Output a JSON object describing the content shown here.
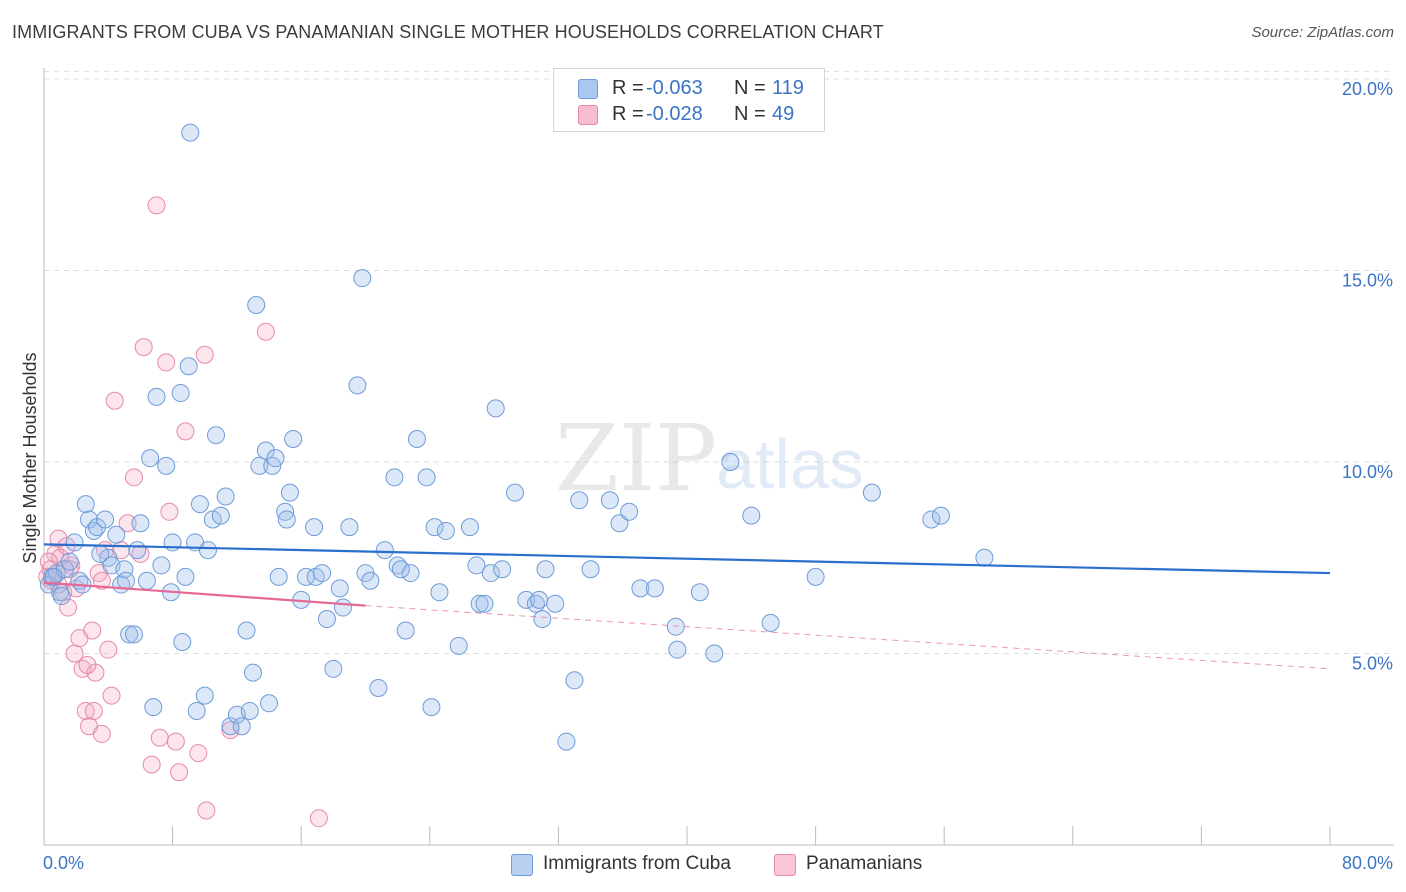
{
  "title": "IMMIGRANTS FROM CUBA VS PANAMANIAN SINGLE MOTHER HOUSEHOLDS CORRELATION CHART",
  "source": "Source: ZipAtlas.com",
  "watermark": {
    "zip": "ZIP",
    "atlas": "atlas"
  },
  "legend": {
    "rows": [
      {
        "r_label": "R =",
        "r_value": "-0.063",
        "n_label": "N =",
        "n_value": "119",
        "color": "#a9c8ef",
        "border": "#6f9bd8"
      },
      {
        "r_label": "R =",
        "r_value": "-0.028",
        "n_label": "N =",
        "n_value": " 49",
        "color": "#f7bcd0",
        "border": "#e68aa9"
      }
    ]
  },
  "bottom_legend": [
    {
      "label": "Immigrants from Cuba",
      "color": "#b8d1f1",
      "border": "#6f9bd8"
    },
    {
      "label": "Panamanians",
      "color": "#f9c6d6",
      "border": "#e68aa9"
    }
  ],
  "colors": {
    "blue_fill": "rgba(155,190,235,0.35)",
    "blue_stroke": "#6f9bd8",
    "blue_line": "#2a6fcb",
    "pink_fill": "rgba(245,170,195,0.30)",
    "pink_stroke": "#e68aa9",
    "pink_line": "#e46a94",
    "grid": "#dddddd",
    "axis": "#bbbbbb",
    "tick_text": "#3b74c6"
  },
  "chart_data": {
    "type": "scatter",
    "title": "IMMIGRANTS FROM CUBA VS PANAMANIAN SINGLE MOTHER HOUSEHOLDS CORRELATION CHART",
    "xlabel": "",
    "ylabel": "Single Mother Households",
    "xlim": [
      0,
      80
    ],
    "ylim": [
      0,
      20.5
    ],
    "x_tick_labels": [
      {
        "value": 0,
        "label": "0.0%"
      },
      {
        "value": 80,
        "label": "80.0%"
      }
    ],
    "y_tick_labels": [
      {
        "value": 5,
        "label": "5.0%"
      },
      {
        "value": 10,
        "label": "10.0%"
      },
      {
        "value": 15,
        "label": "15.0%"
      },
      {
        "value": 20,
        "label": "20.0%"
      }
    ],
    "series": [
      {
        "name": "Immigrants from Cuba",
        "r": -0.063,
        "n": 119,
        "trend": {
          "x": [
            0,
            80
          ],
          "y": [
            7.85,
            7.1
          ],
          "style": "solid"
        },
        "points": [
          [
            0.3,
            6.8
          ],
          [
            0.5,
            7.0
          ],
          [
            0.8,
            7.1
          ],
          [
            1.0,
            6.6
          ],
          [
            1.3,
            7.2
          ],
          [
            1.6,
            7.4
          ],
          [
            1.9,
            7.9
          ],
          [
            2.2,
            6.9
          ],
          [
            2.4,
            6.8
          ],
          [
            2.6,
            8.9
          ],
          [
            2.8,
            8.5
          ],
          [
            3.1,
            8.2
          ],
          [
            3.3,
            8.3
          ],
          [
            3.8,
            8.5
          ],
          [
            4.0,
            7.5
          ],
          [
            4.2,
            7.3
          ],
          [
            4.5,
            8.1
          ],
          [
            4.8,
            6.8
          ],
          [
            5.0,
            7.2
          ],
          [
            5.3,
            5.5
          ],
          [
            5.6,
            5.5
          ],
          [
            5.8,
            7.7
          ],
          [
            6.0,
            8.4
          ],
          [
            6.4,
            6.9
          ],
          [
            6.6,
            10.1
          ],
          [
            6.8,
            3.6
          ],
          [
            7.0,
            11.7
          ],
          [
            7.3,
            7.3
          ],
          [
            7.6,
            9.9
          ],
          [
            7.9,
            6.6
          ],
          [
            8.0,
            7.9
          ],
          [
            8.5,
            11.8
          ],
          [
            9.1,
            18.6
          ],
          [
            8.6,
            5.3
          ],
          [
            8.8,
            7.0
          ],
          [
            9.0,
            12.5
          ],
          [
            9.5,
            3.5
          ],
          [
            9.7,
            8.9
          ],
          [
            10.0,
            3.9
          ],
          [
            10.2,
            7.7
          ],
          [
            10.5,
            8.5
          ],
          [
            10.7,
            10.7
          ],
          [
            11.0,
            8.6
          ],
          [
            11.3,
            9.1
          ],
          [
            11.6,
            3.1
          ],
          [
            12.0,
            3.4
          ],
          [
            12.3,
            3.1
          ],
          [
            12.6,
            5.6
          ],
          [
            13.0,
            4.5
          ],
          [
            13.2,
            14.1
          ],
          [
            13.4,
            9.9
          ],
          [
            13.8,
            10.3
          ],
          [
            14.0,
            3.7
          ],
          [
            14.2,
            9.9
          ],
          [
            14.4,
            10.1
          ],
          [
            14.6,
            7.0
          ],
          [
            15.0,
            8.7
          ],
          [
            15.1,
            8.5
          ],
          [
            15.3,
            9.2
          ],
          [
            15.5,
            10.6
          ],
          [
            16.0,
            6.4
          ],
          [
            16.3,
            7.0
          ],
          [
            16.9,
            7.0
          ],
          [
            17.3,
            7.1
          ],
          [
            17.6,
            5.9
          ],
          [
            18.0,
            4.6
          ],
          [
            18.4,
            6.7
          ],
          [
            18.6,
            6.2
          ],
          [
            19.0,
            8.3
          ],
          [
            19.5,
            12.0
          ],
          [
            19.8,
            14.8
          ],
          [
            20.0,
            7.1
          ],
          [
            20.3,
            6.9
          ],
          [
            20.8,
            4.1
          ],
          [
            21.2,
            7.7
          ],
          [
            21.8,
            9.6
          ],
          [
            22.0,
            7.3
          ],
          [
            22.5,
            5.6
          ],
          [
            22.8,
            7.1
          ],
          [
            23.2,
            10.6
          ],
          [
            23.8,
            9.6
          ],
          [
            24.1,
            3.6
          ],
          [
            24.3,
            8.3
          ],
          [
            24.6,
            6.6
          ],
          [
            25.0,
            8.2
          ],
          [
            25.8,
            5.2
          ],
          [
            26.5,
            8.3
          ],
          [
            27.1,
            6.3
          ],
          [
            27.4,
            6.3
          ],
          [
            27.8,
            7.1
          ],
          [
            28.1,
            11.4
          ],
          [
            28.5,
            7.2
          ],
          [
            29.3,
            9.2
          ],
          [
            30.0,
            6.4
          ],
          [
            30.6,
            6.3
          ],
          [
            30.8,
            6.4
          ],
          [
            31.0,
            5.9
          ],
          [
            31.2,
            7.2
          ],
          [
            31.8,
            6.3
          ],
          [
            32.5,
            2.7
          ],
          [
            33.0,
            4.3
          ],
          [
            33.3,
            9.0
          ],
          [
            35.2,
            9.0
          ],
          [
            35.8,
            8.4
          ],
          [
            36.4,
            8.7
          ],
          [
            37.1,
            6.7
          ],
          [
            38.0,
            6.7
          ],
          [
            39.3,
            5.7
          ],
          [
            39.4,
            5.1
          ],
          [
            40.8,
            6.6
          ],
          [
            41.7,
            5.0
          ],
          [
            42.7,
            10.0
          ],
          [
            44.0,
            8.6
          ],
          [
            45.2,
            5.8
          ],
          [
            48.0,
            7.0
          ],
          [
            51.5,
            9.2
          ],
          [
            55.2,
            8.5
          ],
          [
            55.8,
            8.6
          ],
          [
            58.5,
            7.5
          ],
          [
            0.6,
            7.0
          ],
          [
            1.1,
            6.5
          ],
          [
            3.5,
            7.6
          ],
          [
            5.1,
            6.9
          ],
          [
            12.8,
            3.5
          ],
          [
            9.4,
            7.9
          ],
          [
            16.8,
            8.3
          ],
          [
            22.2,
            7.2
          ],
          [
            34.0,
            7.2
          ],
          [
            26.9,
            7.3
          ]
        ]
      },
      {
        "name": "Panamanians",
        "r": -0.028,
        "n": 49,
        "trend": {
          "x": [
            0,
            20
          ],
          "y": [
            6.85,
            6.25
          ],
          "style": "solid",
          "extended": {
            "x": [
              20,
              80
            ],
            "y": [
              6.25,
              4.6
            ],
            "style": "dashed"
          }
        },
        "points": [
          [
            0.2,
            7.0
          ],
          [
            0.4,
            7.2
          ],
          [
            0.5,
            6.9
          ],
          [
            0.7,
            7.6
          ],
          [
            0.9,
            8.0
          ],
          [
            1.0,
            7.5
          ],
          [
            1.2,
            6.6
          ],
          [
            1.4,
            7.8
          ],
          [
            1.5,
            6.2
          ],
          [
            1.7,
            7.3
          ],
          [
            1.9,
            5.0
          ],
          [
            2.0,
            6.7
          ],
          [
            2.2,
            5.4
          ],
          [
            2.4,
            4.6
          ],
          [
            2.6,
            3.5
          ],
          [
            2.8,
            3.1
          ],
          [
            3.0,
            5.6
          ],
          [
            3.1,
            3.5
          ],
          [
            3.2,
            4.5
          ],
          [
            3.4,
            7.1
          ],
          [
            3.6,
            2.9
          ],
          [
            3.8,
            7.7
          ],
          [
            4.0,
            5.1
          ],
          [
            4.2,
            3.9
          ],
          [
            4.4,
            11.6
          ],
          [
            5.2,
            8.4
          ],
          [
            5.6,
            9.6
          ],
          [
            6.2,
            13.0
          ],
          [
            6.7,
            2.1
          ],
          [
            7.0,
            16.7
          ],
          [
            7.2,
            2.8
          ],
          [
            7.6,
            12.6
          ],
          [
            7.8,
            8.7
          ],
          [
            8.2,
            2.7
          ],
          [
            8.4,
            1.9
          ],
          [
            8.8,
            10.8
          ],
          [
            9.6,
            2.4
          ],
          [
            10.0,
            12.8
          ],
          [
            10.1,
            0.9
          ],
          [
            11.6,
            3.0
          ],
          [
            13.8,
            13.4
          ],
          [
            17.1,
            0.7
          ],
          [
            2.7,
            4.7
          ],
          [
            3.6,
            6.9
          ],
          [
            1.6,
            7.2
          ],
          [
            6.0,
            7.6
          ],
          [
            4.8,
            7.7
          ],
          [
            0.3,
            7.4
          ],
          [
            0.9,
            6.8
          ]
        ]
      }
    ]
  }
}
